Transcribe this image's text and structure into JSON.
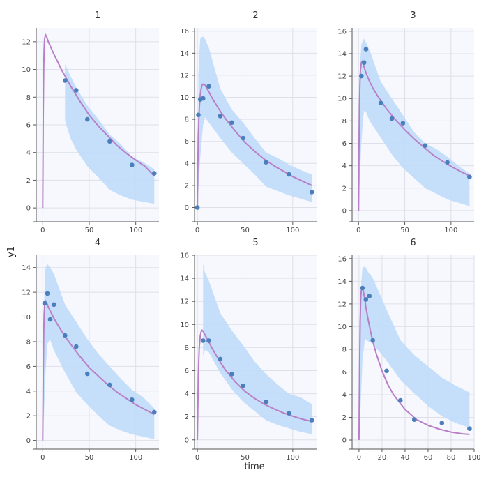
{
  "chart_data": {
    "type": "line",
    "xlabel": "time",
    "ylabel": "y1",
    "grid": true,
    "colors": {
      "band": "#bfdcfb",
      "fit": "#b87fc7",
      "points": "#4a7fbb",
      "background": "#f7f8fd"
    },
    "panels": [
      {
        "title": "1",
        "xlim": [
          -7,
          125
        ],
        "ylim": [
          -1,
          13
        ],
        "xticks": [
          0,
          50,
          100
        ],
        "yticks": [
          0,
          2,
          4,
          6,
          8,
          10,
          12
        ],
        "observed": {
          "x": [
            24,
            36,
            48,
            72,
            96,
            120
          ],
          "y": [
            9.2,
            8.5,
            6.4,
            4.8,
            3.1,
            2.5
          ]
        },
        "prediction": {
          "x": [
            0,
            0.5,
            1,
            1.5,
            2,
            3,
            4,
            5,
            6,
            8,
            10,
            12,
            15,
            20,
            25,
            30,
            40,
            50,
            60,
            70,
            80,
            90,
            100,
            110,
            120
          ],
          "y": [
            0,
            6.5,
            10.0,
            11.5,
            12.2,
            12.5,
            12.4,
            12.2,
            12.0,
            11.7,
            11.4,
            11.1,
            10.7,
            10.0,
            9.4,
            8.8,
            7.7,
            6.7,
            5.9,
            5.2,
            4.5,
            3.95,
            3.45,
            3.0,
            2.3
          ]
        },
        "band": {
          "x": [
            24,
            30,
            36,
            48,
            60,
            72,
            84,
            96,
            108,
            120
          ],
          "lower": [
            6.3,
            5.0,
            4.2,
            3.0,
            2.2,
            1.3,
            0.9,
            0.6,
            0.45,
            0.3
          ],
          "upper": [
            10.4,
            9.5,
            8.7,
            7.4,
            6.4,
            5.3,
            4.6,
            3.7,
            3.3,
            2.8
          ]
        }
      },
      {
        "title": "2",
        "xlim": [
          -3,
          125
        ],
        "ylim": [
          -1.3,
          16.3
        ],
        "xticks": [
          0,
          50,
          100
        ],
        "yticks": [
          0,
          2,
          4,
          6,
          8,
          10,
          12,
          14,
          16
        ],
        "observed": {
          "x": [
            0,
            1,
            3,
            6,
            12,
            24,
            36,
            48,
            72,
            96,
            120
          ],
          "y": [
            0.0,
            8.4,
            9.8,
            9.9,
            11.0,
            8.3,
            7.7,
            6.3,
            4.1,
            3.0,
            1.4
          ]
        },
        "prediction": {
          "x": [
            0,
            0.5,
            1,
            1.5,
            2,
            3,
            4,
            5,
            6,
            8,
            10,
            12,
            15,
            20,
            25,
            30,
            40,
            50,
            60,
            70,
            80,
            90,
            100,
            110,
            120
          ],
          "y": [
            0,
            4.0,
            6.5,
            8.0,
            9.0,
            10.2,
            10.8,
            11.1,
            11.2,
            11.1,
            10.8,
            10.5,
            10.0,
            9.3,
            8.6,
            8.0,
            6.9,
            5.9,
            5.1,
            4.4,
            3.8,
            3.3,
            2.8,
            2.4,
            2.0
          ]
        },
        "band": {
          "x": [
            1,
            2,
            3,
            5,
            6,
            8,
            12,
            24,
            36,
            48,
            60,
            72,
            84,
            96,
            108,
            120
          ],
          "lower": [
            1.5,
            3.0,
            4.5,
            6.5,
            7.5,
            8.2,
            7.7,
            6.3,
            5.0,
            4.0,
            3.0,
            1.9,
            1.5,
            1.1,
            0.8,
            0.5
          ],
          "upper": [
            12.0,
            14.0,
            15.3,
            15.5,
            15.5,
            15.3,
            14.5,
            10.8,
            8.9,
            7.7,
            6.3,
            5.0,
            4.5,
            3.9,
            3.4,
            3.0
          ]
        }
      },
      {
        "title": "3",
        "xlim": [
          -7,
          125
        ],
        "ylim": [
          -1,
          16.3
        ],
        "xticks": [
          0,
          50,
          100
        ],
        "yticks": [
          0,
          2,
          4,
          6,
          8,
          10,
          12,
          14,
          16
        ],
        "observed": {
          "x": [
            3,
            6,
            8,
            24,
            36,
            48,
            72,
            96,
            120
          ],
          "y": [
            12.0,
            13.2,
            14.4,
            9.6,
            8.2,
            7.8,
            5.8,
            4.3,
            3.0
          ]
        },
        "prediction": {
          "x": [
            0,
            0.5,
            1,
            1.5,
            2,
            3,
            4,
            5,
            6,
            8,
            10,
            12,
            15,
            20,
            25,
            30,
            40,
            50,
            60,
            70,
            80,
            90,
            100,
            110,
            120
          ],
          "y": [
            0,
            5.5,
            9.5,
            11.5,
            12.5,
            13.2,
            13.3,
            13.1,
            12.8,
            12.3,
            11.9,
            11.5,
            11.0,
            10.3,
            9.7,
            9.1,
            8.1,
            7.2,
            6.4,
            5.7,
            5.0,
            4.45,
            3.95,
            3.5,
            3.1
          ]
        },
        "band": {
          "x": [
            1,
            2,
            3,
            5,
            6,
            8,
            12,
            24,
            36,
            48,
            60,
            72,
            84,
            96,
            108,
            120
          ],
          "lower": [
            2.0,
            4.0,
            6.0,
            8.3,
            8.9,
            8.8,
            8.0,
            6.5,
            5.0,
            3.8,
            2.9,
            2.0,
            1.5,
            1.0,
            0.7,
            0.4
          ],
          "upper": [
            11.0,
            13.5,
            14.8,
            15.3,
            15.3,
            15.0,
            14.3,
            11.5,
            10.0,
            8.5,
            7.0,
            6.0,
            5.5,
            4.8,
            4.0,
            3.3
          ]
        }
      },
      {
        "title": "4",
        "xlim": [
          -7,
          125
        ],
        "ylim": [
          -0.7,
          15
        ],
        "xticks": [
          0,
          50,
          100
        ],
        "yticks": [
          0,
          2,
          4,
          6,
          8,
          10,
          12,
          14
        ],
        "observed": {
          "x": [
            2,
            5,
            8,
            12,
            24,
            36,
            48,
            72,
            96,
            120
          ],
          "y": [
            11.1,
            11.9,
            9.8,
            11.0,
            8.5,
            7.6,
            5.4,
            4.5,
            3.3,
            2.3
          ]
        },
        "prediction": {
          "x": [
            0,
            0.5,
            1,
            1.5,
            2,
            3,
            4,
            5,
            6,
            8,
            10,
            12,
            15,
            20,
            25,
            30,
            40,
            50,
            60,
            70,
            80,
            90,
            100,
            110,
            120
          ],
          "y": [
            0,
            5.0,
            8.5,
            10.2,
            11.0,
            11.3,
            11.2,
            11.0,
            10.8,
            10.5,
            10.2,
            9.9,
            9.5,
            8.9,
            8.3,
            7.8,
            6.8,
            5.9,
            5.2,
            4.5,
            3.9,
            3.4,
            2.9,
            2.5,
            2.1
          ]
        },
        "band": {
          "x": [
            1,
            2,
            3,
            5,
            6,
            8,
            12,
            24,
            36,
            48,
            60,
            72,
            84,
            96,
            108,
            120
          ],
          "lower": [
            1.5,
            3.5,
            5.5,
            7.8,
            8.0,
            8.2,
            7.3,
            5.5,
            3.9,
            2.9,
            2.0,
            1.2,
            0.8,
            0.5,
            0.3,
            0.1
          ],
          "upper": [
            10.0,
            12.5,
            14.0,
            14.3,
            14.2,
            14.0,
            13.5,
            11.0,
            9.6,
            8.2,
            7.0,
            6.0,
            5.0,
            4.1,
            3.5,
            2.6
          ]
        }
      },
      {
        "title": "5",
        "xlim": [
          -3,
          125
        ],
        "ylim": [
          -0.8,
          16
        ],
        "xticks": [
          0,
          50,
          100
        ],
        "yticks": [
          0,
          2,
          4,
          6,
          8,
          10,
          12,
          14,
          16
        ],
        "observed": {
          "x": [
            6,
            12,
            24,
            36,
            48,
            72,
            96,
            120
          ],
          "y": [
            8.6,
            8.6,
            7.0,
            5.7,
            4.7,
            3.3,
            2.3,
            1.7
          ]
        },
        "prediction": {
          "x": [
            0,
            0.5,
            1,
            1.5,
            2,
            3,
            4,
            5,
            6,
            8,
            10,
            12,
            15,
            20,
            25,
            30,
            40,
            50,
            60,
            70,
            80,
            90,
            100,
            110,
            120
          ],
          "y": [
            0,
            3.0,
            5.5,
            7.0,
            8.0,
            9.0,
            9.4,
            9.5,
            9.4,
            9.1,
            8.8,
            8.5,
            8.0,
            7.3,
            6.6,
            6.0,
            5.0,
            4.2,
            3.6,
            3.1,
            2.7,
            2.35,
            2.05,
            1.8,
            1.6
          ]
        },
        "band": {
          "x": [
            6,
            8,
            12,
            24,
            36,
            48,
            60,
            72,
            84,
            96,
            108,
            120
          ],
          "lower": [
            7.3,
            7.8,
            7.6,
            5.8,
            4.4,
            3.3,
            2.5,
            1.7,
            1.3,
            1.0,
            0.7,
            0.5
          ],
          "upper": [
            15.3,
            14.5,
            13.8,
            11.0,
            9.5,
            8.2,
            6.8,
            5.7,
            4.8,
            4.0,
            3.7,
            3.1
          ]
        }
      },
      {
        "title": "6",
        "xlim": [
          -6,
          100
        ],
        "ylim": [
          -0.8,
          16.3
        ],
        "xticks": [
          0,
          20,
          40,
          60,
          80,
          100
        ],
        "yticks": [
          0,
          2,
          4,
          6,
          8,
          10,
          12,
          14,
          16
        ],
        "observed": {
          "x": [
            3,
            6,
            9,
            12,
            24,
            36,
            48,
            72,
            96
          ],
          "y": [
            13.4,
            12.4,
            12.7,
            8.8,
            6.1,
            3.5,
            1.8,
            1.5,
            1.0
          ]
        },
        "prediction": {
          "x": [
            0,
            0.5,
            1,
            1.5,
            2,
            3,
            4,
            5,
            6,
            8,
            10,
            12,
            15,
            20,
            25,
            30,
            40,
            50,
            60,
            70,
            80,
            90,
            96
          ],
          "y": [
            0,
            6.0,
            10.5,
            12.5,
            13.2,
            13.4,
            13.0,
            12.4,
            11.7,
            10.6,
            9.6,
            8.7,
            7.6,
            6.1,
            4.9,
            4.0,
            2.7,
            1.8,
            1.3,
            0.95,
            0.7,
            0.55,
            0.5
          ]
        },
        "band": {
          "x": [
            1,
            2,
            3,
            5,
            6,
            8,
            12,
            24,
            36,
            48,
            60,
            72,
            84,
            96
          ],
          "lower": [
            2.0,
            4.5,
            7.0,
            8.8,
            8.9,
            8.7,
            8.5,
            7.0,
            5.3,
            4.1,
            3.0,
            2.1,
            1.5,
            1.1
          ],
          "upper": [
            11.0,
            14.0,
            15.2,
            15.3,
            15.2,
            14.8,
            14.3,
            11.5,
            8.8,
            7.5,
            6.5,
            5.5,
            4.8,
            4.2
          ]
        }
      }
    ]
  }
}
